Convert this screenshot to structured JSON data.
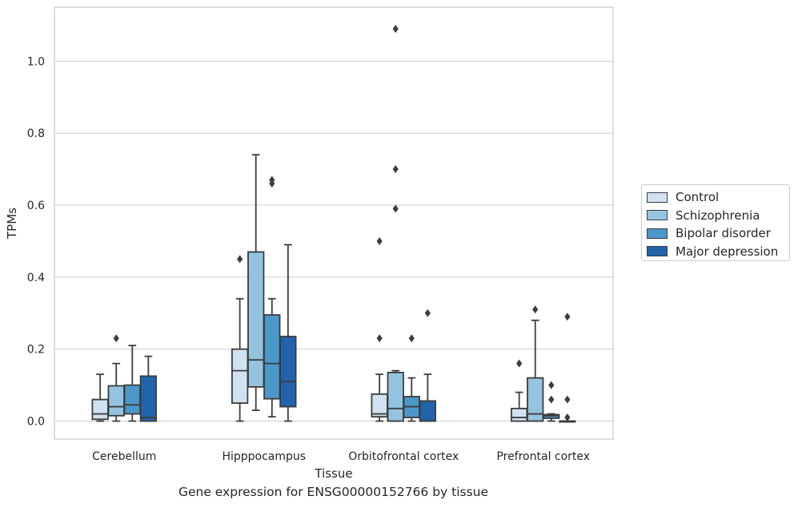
{
  "chart_data": {
    "type": "box",
    "title": "",
    "xlabel": "Tissue",
    "ylabel": "TPMs",
    "caption": "Gene expression for ENSG00000152766 by tissue",
    "categories": [
      "Cerebellum",
      "Hipppocampus",
      "Orbitofrontal cortex",
      "Prefrontal cortex"
    ],
    "ylim": [
      -0.05,
      1.15
    ],
    "yticks": [
      0.0,
      0.2,
      0.4,
      0.6,
      0.8,
      1.0
    ],
    "ytick_labels": [
      "0.0",
      "0.2",
      "0.4",
      "0.6",
      "0.8",
      "1.0"
    ],
    "grid": "horizontal",
    "legend_position": "right",
    "series": [
      {
        "name": "Control",
        "color": "#d0e1f2",
        "boxes": [
          {
            "q1": 0.005,
            "median": 0.02,
            "q3": 0.06,
            "whislo": 0.0,
            "whishi": 0.13,
            "fliers": []
          },
          {
            "q1": 0.05,
            "median": 0.14,
            "q3": 0.2,
            "whislo": 0.0,
            "whishi": 0.34,
            "fliers": [
              0.45
            ]
          },
          {
            "q1": 0.012,
            "median": 0.02,
            "q3": 0.075,
            "whislo": 0.0,
            "whishi": 0.13,
            "fliers": [
              0.23,
              0.5
            ]
          },
          {
            "q1": 0.0,
            "median": 0.01,
            "q3": 0.035,
            "whislo": 0.0,
            "whishi": 0.08,
            "fliers": [
              0.16
            ]
          }
        ]
      },
      {
        "name": "Schizophrenia",
        "color": "#94c4df",
        "boxes": [
          {
            "q1": 0.015,
            "median": 0.04,
            "q3": 0.098,
            "whislo": 0.0,
            "whishi": 0.16,
            "fliers": [
              0.23
            ]
          },
          {
            "q1": 0.095,
            "median": 0.17,
            "q3": 0.47,
            "whislo": 0.03,
            "whishi": 0.74,
            "fliers": []
          },
          {
            "q1": 0.0,
            "median": 0.035,
            "q3": 0.135,
            "whislo": 0.0,
            "whishi": 0.14,
            "fliers": [
              0.59,
              0.7,
              1.09
            ]
          },
          {
            "q1": 0.0,
            "median": 0.02,
            "q3": 0.12,
            "whislo": 0.0,
            "whishi": 0.28,
            "fliers": [
              0.31
            ]
          }
        ]
      },
      {
        "name": "Bipolar disorder",
        "color": "#4a98c9",
        "boxes": [
          {
            "q1": 0.02,
            "median": 0.045,
            "q3": 0.1,
            "whislo": 0.0,
            "whishi": 0.21,
            "fliers": []
          },
          {
            "q1": 0.062,
            "median": 0.16,
            "q3": 0.295,
            "whislo": 0.012,
            "whishi": 0.34,
            "fliers": [
              0.66,
              0.67
            ]
          },
          {
            "q1": 0.01,
            "median": 0.04,
            "q3": 0.068,
            "whislo": 0.0,
            "whishi": 0.12,
            "fliers": [
              0.23
            ]
          },
          {
            "q1": 0.008,
            "median": 0.015,
            "q3": 0.018,
            "whislo": 0.0,
            "whishi": 0.02,
            "fliers": [
              0.06,
              0.1
            ]
          }
        ]
      },
      {
        "name": "Major depression",
        "color": "#2164ab",
        "boxes": [
          {
            "q1": 0.0,
            "median": 0.01,
            "q3": 0.125,
            "whislo": 0.0,
            "whishi": 0.18,
            "fliers": []
          },
          {
            "q1": 0.04,
            "median": 0.11,
            "q3": 0.235,
            "whislo": 0.0,
            "whishi": 0.49,
            "fliers": []
          },
          {
            "q1": 0.0,
            "median": 0.0,
            "q3": 0.056,
            "whislo": 0.0,
            "whishi": 0.13,
            "fliers": [
              0.3
            ]
          },
          {
            "q1": 0.0,
            "median": 0.0,
            "q3": 0.0,
            "whislo": 0.0,
            "whishi": 0.0,
            "fliers": [
              0.01,
              0.06,
              0.29
            ]
          }
        ]
      }
    ]
  },
  "colors": {
    "grid": "#cccccc",
    "box_edge": "#3d3d3d",
    "text": "#262626"
  }
}
